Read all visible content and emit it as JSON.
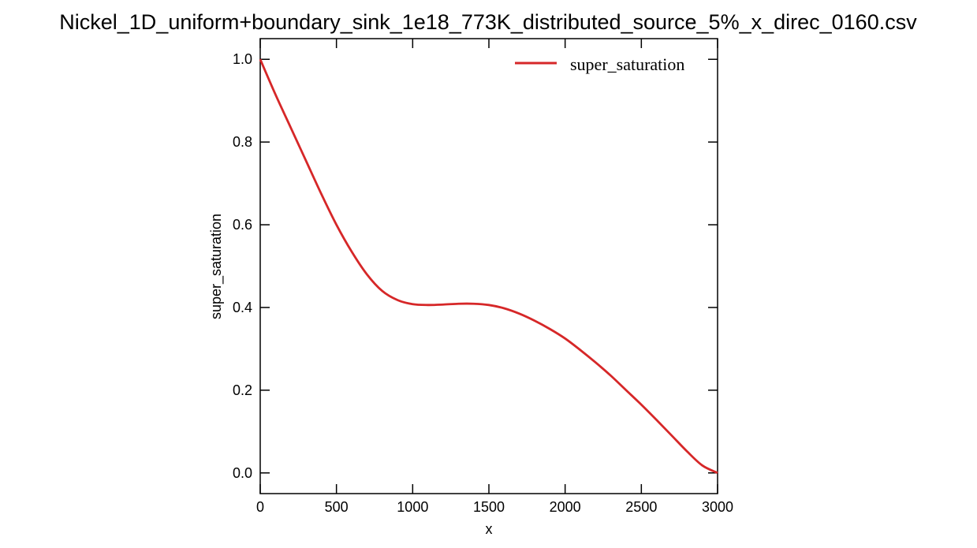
{
  "chart_data": {
    "type": "line",
    "title": "Nickel_1D_uniform+boundary_sink_1e18_773K_distributed_source_5%_x_direc_0160.csv",
    "xlabel": "x",
    "ylabel": "super_saturation",
    "xlim": [
      0,
      3000
    ],
    "ylim": [
      -0.05,
      1.05
    ],
    "xticks": [
      0,
      500,
      1000,
      1500,
      2000,
      2500,
      3000
    ],
    "xtick_labels": [
      "0",
      "500",
      "1000",
      "1500",
      "2000",
      "2500",
      "3000"
    ],
    "yticks": [
      0.0,
      0.2,
      0.4,
      0.6,
      0.8,
      1.0
    ],
    "ytick_labels": [
      "0.0",
      "0.2",
      "0.4",
      "0.6",
      "0.8",
      "1.0"
    ],
    "grid": false,
    "legend_position": "upper-right",
    "series": [
      {
        "name": "super_saturation",
        "color": "#d62728",
        "x": [
          0,
          100,
          200,
          300,
          400,
          500,
          600,
          700,
          800,
          900,
          1000,
          1100,
          1200,
          1300,
          1400,
          1500,
          1600,
          1700,
          1800,
          1900,
          2000,
          2100,
          2200,
          2300,
          2400,
          2500,
          2600,
          2700,
          2800,
          2900,
          3000
        ],
        "y": [
          1.0,
          0.915,
          0.835,
          0.755,
          0.675,
          0.6,
          0.535,
          0.48,
          0.44,
          0.418,
          0.408,
          0.406,
          0.407,
          0.409,
          0.409,
          0.406,
          0.398,
          0.385,
          0.368,
          0.348,
          0.325,
          0.297,
          0.267,
          0.235,
          0.2,
          0.165,
          0.128,
          0.09,
          0.052,
          0.018,
          0.0
        ]
      }
    ]
  }
}
